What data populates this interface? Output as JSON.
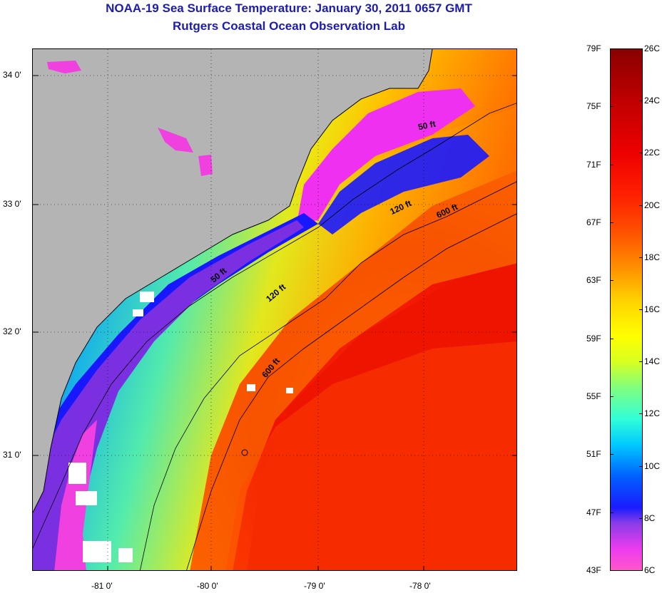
{
  "title": "NOAA-19 Sea Surface Temperature:  January 30, 2011 0657 GMT",
  "subtitle": "Rutgers Coastal Ocean Observation Lab",
  "map": {
    "lat_labels": [
      "34 0'",
      "33 0'",
      "32 0'",
      "31 0'"
    ],
    "lon_labels": [
      "-81 0'",
      "-80 0'",
      "-79 0'",
      "-78 0'"
    ],
    "contour_labels": [
      "50 ft",
      "120 ft",
      "600 ft",
      "50 ft",
      "120 ft",
      "600 ft"
    ],
    "colors": {
      "land": "#b4b4b4",
      "cloud": "#ffffff"
    }
  },
  "colorbar": {
    "fahrenheit_labels": [
      "79F",
      "75F",
      "71F",
      "67F",
      "63F",
      "59F",
      "55F",
      "51F",
      "47F",
      "43F"
    ],
    "celsius_labels": [
      "26C",
      "24C",
      "22C",
      "20C",
      "18C",
      "16C",
      "14C",
      "12C",
      "10C",
      "8C",
      "6C"
    ],
    "range_f": [
      43,
      79
    ],
    "range_c": [
      6,
      26
    ]
  }
}
